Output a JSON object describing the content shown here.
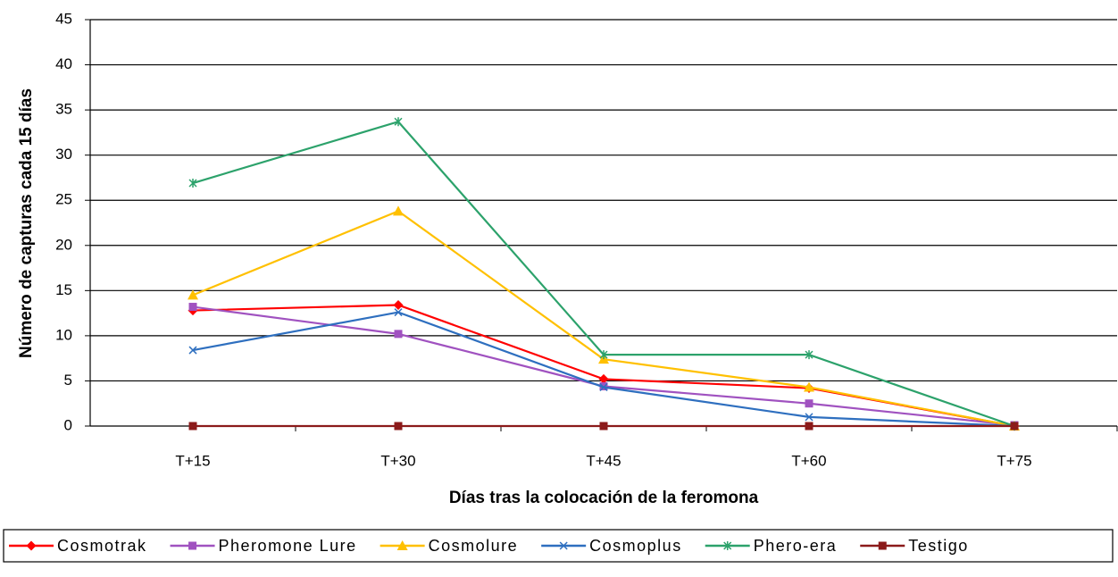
{
  "chart_data": {
    "type": "line",
    "x_label": "Días tras la colocación de la feromona",
    "y_label": "Número de capturas cada 15 días",
    "categories": [
      "T+15",
      "T+30",
      "T+45",
      "T+60",
      "T+75"
    ],
    "series": [
      {
        "name": "Cosmotrak",
        "color": "#ff0000",
        "marker": "diamond",
        "values": [
          12.8,
          13.4,
          5.2,
          4.2,
          0
        ]
      },
      {
        "name": "Pheromone Lure",
        "color": "#a052c0",
        "marker": "square",
        "values": [
          13.2,
          10.2,
          4.4,
          2.5,
          0.1
        ]
      },
      {
        "name": "Cosmolure",
        "color": "#ffc000",
        "marker": "triangle",
        "values": [
          14.5,
          23.8,
          7.4,
          4.3,
          0
        ]
      },
      {
        "name": "Cosmoplus",
        "color": "#2e6fbf",
        "marker": "x",
        "values": [
          8.4,
          12.6,
          4.3,
          1.0,
          0
        ]
      },
      {
        "name": "Phero-era",
        "color": "#2ca26b",
        "marker": "star",
        "values": [
          26.9,
          33.7,
          7.9,
          7.9,
          0
        ]
      },
      {
        "name": "Testigo",
        "color": "#8b1a1a",
        "marker": "square",
        "values": [
          0,
          0,
          0,
          0,
          0
        ]
      }
    ],
    "ylim": [
      0,
      45
    ],
    "yticks": [
      0,
      5,
      10,
      15,
      20,
      25,
      30,
      35,
      40,
      45
    ],
    "grid": true,
    "legend": "bottom"
  }
}
